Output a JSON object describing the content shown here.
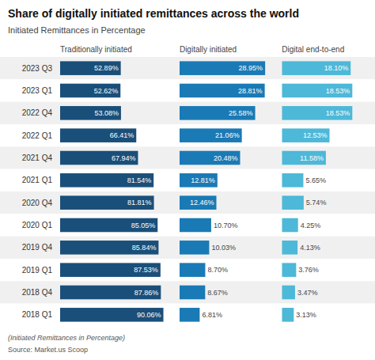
{
  "chart_data": {
    "type": "bar",
    "orientation": "horizontal",
    "title": "Share of digitally initiated remittances across the world",
    "subtitle": "Initiated Remittances in Percentage",
    "annotations": [
      "(Initiated Remittances in Percentage)",
      "Source: Market.us Scoop"
    ],
    "categories": [
      "2023 Q3",
      "2023 Q1",
      "2022 Q4",
      "2022 Q1",
      "2021 Q4",
      "2021 Q1",
      "2020 Q4",
      "2020 Q1",
      "2019 Q4",
      "2019 Q1",
      "2018 Q4",
      "2018 Q1"
    ],
    "series": [
      {
        "name": "Traditionally initiated",
        "color": "#1a4f7a",
        "xlim": [
          0,
          100
        ],
        "values": [
          52.89,
          52.62,
          53.08,
          66.41,
          67.94,
          81.54,
          81.81,
          85.05,
          85.84,
          87.53,
          87.86,
          90.06
        ],
        "value_labels": [
          "52.89%",
          "52.62%",
          "53.08%",
          "66.41%",
          "67.94%",
          "81.54%",
          "81.81%",
          "85.05%",
          "85.84%",
          "87.53%",
          "87.86%",
          "90.06%"
        ]
      },
      {
        "name": "Digitally initiated",
        "color": "#1a7ab5",
        "xlim": [
          0,
          33
        ],
        "values": [
          28.95,
          28.81,
          25.58,
          21.06,
          20.48,
          12.81,
          12.46,
          10.7,
          10.03,
          8.7,
          8.67,
          6.81
        ],
        "value_labels": [
          "28.95%",
          "28.81%",
          "25.58%",
          "21.06%",
          "20.48%",
          "12.81%",
          "12.46%",
          "10.70%",
          "10.03%",
          "8.70%",
          "8.67%",
          "6.81%"
        ]
      },
      {
        "name": "Digital end-to-end",
        "color": "#4db8d8",
        "xlim": [
          0,
          22
        ],
        "values": [
          18.1,
          18.53,
          18.53,
          12.53,
          11.58,
          5.65,
          5.74,
          4.25,
          4.13,
          3.76,
          3.47,
          3.13
        ],
        "value_labels": [
          "18.10%",
          "18.53%",
          "18.53%",
          "12.53%",
          "11.58%",
          "5.65%",
          "5.74%",
          "4.25%",
          "4.13%",
          "3.76%",
          "3.47%",
          "3.13%"
        ]
      }
    ],
    "data_labels": true,
    "tick_labels": "y",
    "grid": false
  }
}
